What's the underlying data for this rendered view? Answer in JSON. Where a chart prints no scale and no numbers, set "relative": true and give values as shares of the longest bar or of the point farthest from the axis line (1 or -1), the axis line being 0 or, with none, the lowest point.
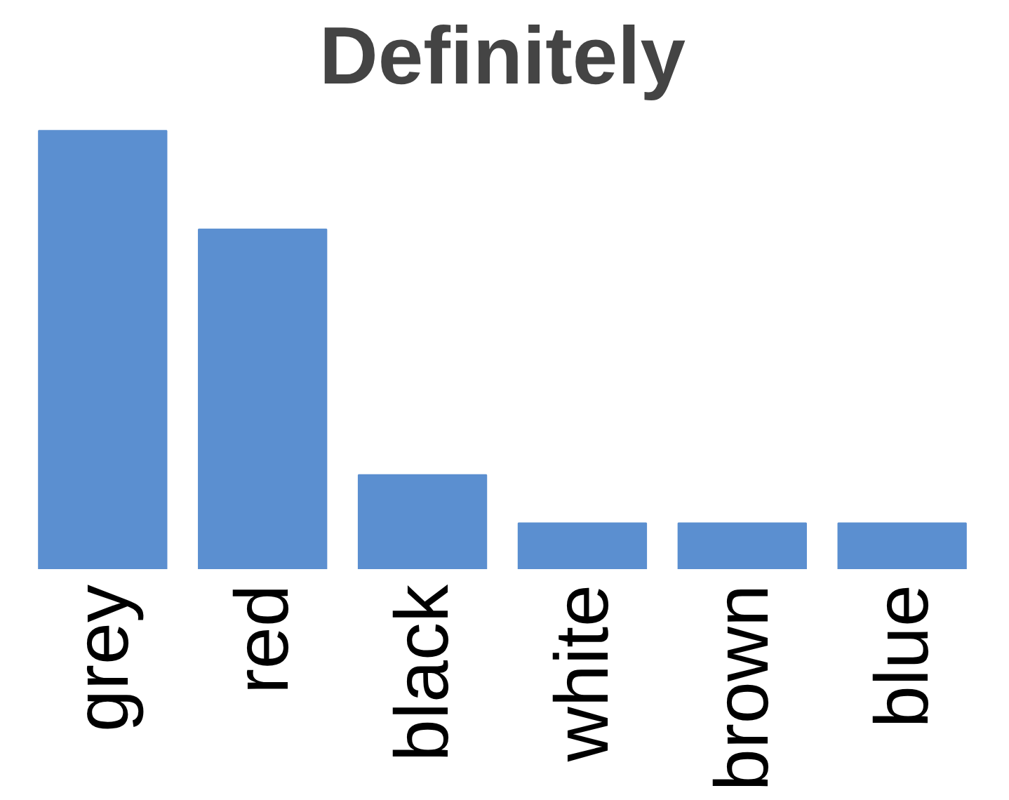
{
  "chart_data": {
    "type": "bar",
    "title": "Definitely",
    "relative": true,
    "categories": [
      "grey",
      "red",
      "black",
      "white",
      "brown",
      "blue"
    ],
    "values": [
      1,
      0.775,
      0.215,
      0.105,
      0.105,
      0.105
    ],
    "color": "#5b8fd0"
  }
}
